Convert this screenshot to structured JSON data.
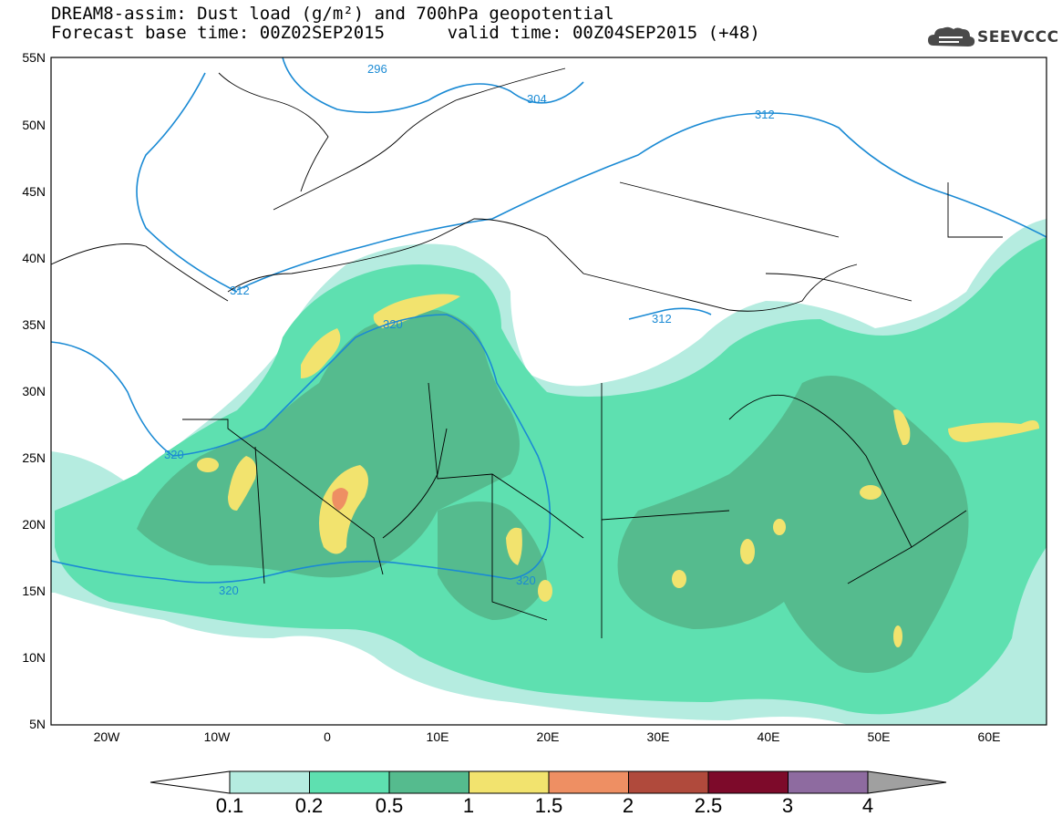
{
  "header": {
    "title_line1": "DREAM8-assim: Dust load (g/m²) and 700hPa geopotential",
    "title_line2": "Forecast base time: 00Z02SEP2015      valid time: 00Z04SEP2015 (+48)"
  },
  "logo": {
    "text": "SEEVCCC"
  },
  "axes": {
    "lat_labels": [
      "55N",
      "50N",
      "45N",
      "40N",
      "35N",
      "30N",
      "25N",
      "20N",
      "15N",
      "10N",
      "5N"
    ],
    "lon_labels": [
      "20W",
      "10W",
      "0",
      "10E",
      "20E",
      "30E",
      "40E",
      "50E",
      "60E"
    ]
  },
  "contours": {
    "labels": [
      "296",
      "304",
      "312",
      "312",
      "312",
      "320",
      "320",
      "320",
      "320"
    ]
  },
  "colorbar": {
    "tick_labels": [
      "0.1",
      "0.2",
      "0.5",
      "1",
      "1.5",
      "2",
      "2.5",
      "3",
      "4"
    ],
    "colors": [
      "#b5ece0",
      "#5ee0b0",
      "#55bb8e",
      "#f2e36e",
      "#ee8f63",
      "#b04a3c",
      "#7d0a2a",
      "#8e6ba0",
      "#a0a0a0"
    ]
  },
  "map_colors": {
    "ocean": "#ffffff",
    "geopotential_contour": "#1a8ad4",
    "border": "#000000"
  }
}
